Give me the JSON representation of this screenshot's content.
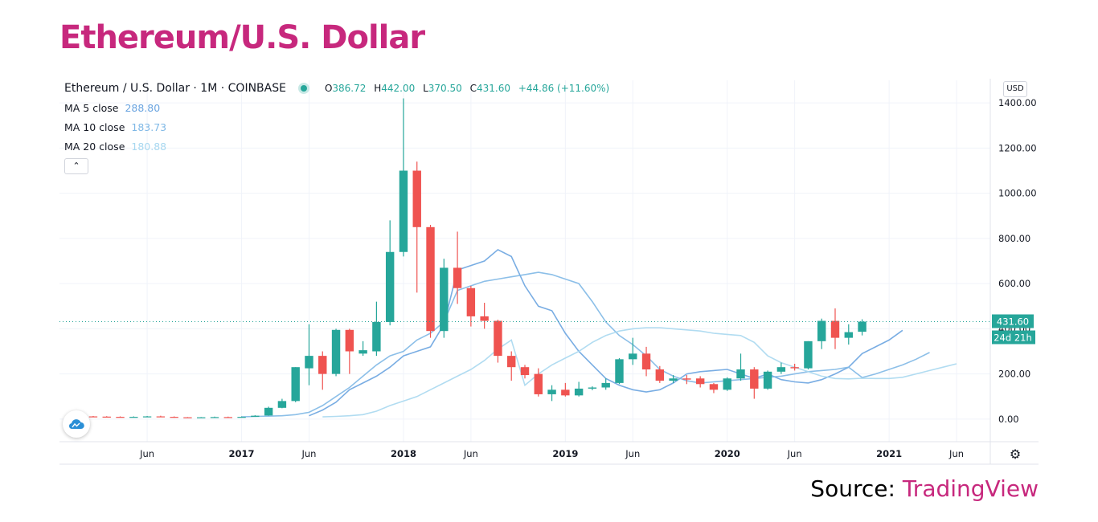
{
  "page_title": "Ethereum/U.S. Dollar",
  "colors": {
    "brand": "#c7287d",
    "up": "#26a69a",
    "down": "#ef5350",
    "ma5": "#6aa4e0",
    "ma10": "#7fb8e6",
    "ma20": "#a8d8f0",
    "grid": "#f0f3fa",
    "axis_text": "#131722"
  },
  "header": {
    "symbol": "Ethereum / U.S. Dollar · 1M · COINBASE",
    "o_label": "O",
    "o_value": "386.72",
    "h_label": "H",
    "h_value": "442.00",
    "l_label": "L",
    "l_value": "370.50",
    "c_label": "C",
    "c_value": "431.60",
    "change": "+44.86 (+11.60%)"
  },
  "indicators": [
    {
      "label": "MA 5 close",
      "value": "288.80"
    },
    {
      "label": "MA 10 close",
      "value": "183.73"
    },
    {
      "label": "MA 20 close",
      "value": "180.88"
    }
  ],
  "controls": {
    "collapse_icon": "chevron-up-icon",
    "collapse_glyph": "⌃",
    "currency": "USD",
    "settings_glyph": "⚙",
    "settings_icon": "gear-icon"
  },
  "price_tag": {
    "value": "431.60",
    "countdown": "24d 21h"
  },
  "source": {
    "prefix": "Source:",
    "brand": "TradingView"
  },
  "chart_data": {
    "type": "candlestick",
    "title": "Ethereum / U.S. Dollar · 1M · COINBASE",
    "ylim": [
      -100,
      1500
    ],
    "y_ticks": [
      {
        "value": 0,
        "label": "0.00"
      },
      {
        "value": 200,
        "label": "200.00"
      },
      {
        "value": 400,
        "label": "400.00"
      },
      {
        "value": 600,
        "label": "600.00"
      },
      {
        "value": 800,
        "label": "800.00"
      },
      {
        "value": 1000,
        "label": "1000.00"
      },
      {
        "value": 1200,
        "label": "1200.00"
      },
      {
        "value": 1400,
        "label": "1400.00"
      }
    ],
    "x_ticks": [
      {
        "i": 5,
        "label": "Jun",
        "bold": false
      },
      {
        "i": 12,
        "label": "2017",
        "bold": true
      },
      {
        "i": 17,
        "label": "Jun",
        "bold": false
      },
      {
        "i": 24,
        "label": "2018",
        "bold": true
      },
      {
        "i": 29,
        "label": "Jun",
        "bold": false
      },
      {
        "i": 36,
        "label": "2019",
        "bold": true
      },
      {
        "i": 41,
        "label": "Jun",
        "bold": false
      },
      {
        "i": 48,
        "label": "2020",
        "bold": true
      },
      {
        "i": 53,
        "label": "Jun",
        "bold": false
      },
      {
        "i": 60,
        "label": "2021",
        "bold": true
      },
      {
        "i": 65,
        "label": "Jun",
        "bold": false
      }
    ],
    "x_range": [
      -1.5,
      67.5
    ],
    "candles": [
      {
        "i": 1,
        "o": 12,
        "h": 14,
        "l": 10,
        "c": 11
      },
      {
        "i": 2,
        "o": 11,
        "h": 13,
        "l": 9,
        "c": 10
      },
      {
        "i": 3,
        "o": 10,
        "h": 12,
        "l": 8,
        "c": 9
      },
      {
        "i": 4,
        "o": 9,
        "h": 12,
        "l": 8,
        "c": 10
      },
      {
        "i": 5,
        "o": 10,
        "h": 14,
        "l": 9,
        "c": 12
      },
      {
        "i": 6,
        "o": 12,
        "h": 15,
        "l": 9,
        "c": 10
      },
      {
        "i": 7,
        "o": 10,
        "h": 12,
        "l": 6,
        "c": 7
      },
      {
        "i": 8,
        "o": 8,
        "h": 9,
        "l": 7,
        "c": 7
      },
      {
        "i": 9,
        "o": 7,
        "h": 9,
        "l": 6,
        "c": 8
      },
      {
        "i": 10,
        "o": 8,
        "h": 11,
        "l": 7,
        "c": 9
      },
      {
        "i": 11,
        "o": 9,
        "h": 11,
        "l": 7,
        "c": 8
      },
      {
        "i": 12,
        "o": 8,
        "h": 12,
        "l": 8,
        "c": 10
      },
      {
        "i": 13,
        "o": 10,
        "h": 17,
        "l": 10,
        "c": 15
      },
      {
        "i": 14,
        "o": 16,
        "h": 55,
        "l": 15,
        "c": 50
      },
      {
        "i": 15,
        "o": 50,
        "h": 90,
        "l": 48,
        "c": 80
      },
      {
        "i": 16,
        "o": 80,
        "h": 230,
        "l": 75,
        "c": 230
      },
      {
        "i": 17,
        "o": 225,
        "h": 420,
        "l": 150,
        "c": 280
      },
      {
        "i": 18,
        "o": 280,
        "h": 300,
        "l": 130,
        "c": 200
      },
      {
        "i": 19,
        "o": 200,
        "h": 400,
        "l": 190,
        "c": 395
      },
      {
        "i": 20,
        "o": 395,
        "h": 400,
        "l": 200,
        "c": 300
      },
      {
        "i": 21,
        "o": 290,
        "h": 345,
        "l": 280,
        "c": 305
      },
      {
        "i": 22,
        "o": 300,
        "h": 520,
        "l": 280,
        "c": 430
      },
      {
        "i": 23,
        "o": 430,
        "h": 880,
        "l": 415,
        "c": 740
      },
      {
        "i": 24,
        "o": 740,
        "h": 1420,
        "l": 720,
        "c": 1100
      },
      {
        "i": 25,
        "o": 1100,
        "h": 1140,
        "l": 560,
        "c": 850
      },
      {
        "i": 26,
        "o": 850,
        "h": 860,
        "l": 360,
        "c": 390
      },
      {
        "i": 27,
        "o": 390,
        "h": 710,
        "l": 360,
        "c": 670
      },
      {
        "i": 28,
        "o": 670,
        "h": 830,
        "l": 510,
        "c": 580
      },
      {
        "i": 29,
        "o": 580,
        "h": 590,
        "l": 410,
        "c": 455
      },
      {
        "i": 30,
        "o": 455,
        "h": 515,
        "l": 400,
        "c": 435
      },
      {
        "i": 31,
        "o": 435,
        "h": 440,
        "l": 250,
        "c": 280
      },
      {
        "i": 32,
        "o": 280,
        "h": 300,
        "l": 170,
        "c": 230
      },
      {
        "i": 33,
        "o": 230,
        "h": 240,
        "l": 180,
        "c": 195
      },
      {
        "i": 34,
        "o": 200,
        "h": 225,
        "l": 100,
        "c": 110
      },
      {
        "i": 35,
        "o": 110,
        "h": 150,
        "l": 80,
        "c": 130
      },
      {
        "i": 36,
        "o": 130,
        "h": 160,
        "l": 100,
        "c": 105
      },
      {
        "i": 37,
        "o": 105,
        "h": 165,
        "l": 100,
        "c": 135
      },
      {
        "i": 38,
        "o": 135,
        "h": 145,
        "l": 128,
        "c": 140
      },
      {
        "i": 39,
        "o": 140,
        "h": 180,
        "l": 130,
        "c": 160
      },
      {
        "i": 40,
        "o": 160,
        "h": 270,
        "l": 155,
        "c": 265
      },
      {
        "i": 41,
        "o": 265,
        "h": 360,
        "l": 240,
        "c": 290
      },
      {
        "i": 42,
        "o": 290,
        "h": 320,
        "l": 190,
        "c": 220
      },
      {
        "i": 43,
        "o": 220,
        "h": 235,
        "l": 160,
        "c": 170
      },
      {
        "i": 44,
        "o": 170,
        "h": 195,
        "l": 160,
        "c": 180
      },
      {
        "i": 45,
        "o": 180,
        "h": 195,
        "l": 155,
        "c": 175
      },
      {
        "i": 46,
        "o": 180,
        "h": 190,
        "l": 140,
        "c": 155
      },
      {
        "i": 47,
        "o": 155,
        "h": 160,
        "l": 115,
        "c": 130
      },
      {
        "i": 48,
        "o": 130,
        "h": 185,
        "l": 125,
        "c": 180
      },
      {
        "i": 49,
        "o": 180,
        "h": 290,
        "l": 170,
        "c": 220
      },
      {
        "i": 50,
        "o": 220,
        "h": 230,
        "l": 90,
        "c": 135
      },
      {
        "i": 51,
        "o": 135,
        "h": 215,
        "l": 130,
        "c": 210
      },
      {
        "i": 52,
        "o": 210,
        "h": 250,
        "l": 200,
        "c": 230
      },
      {
        "i": 53,
        "o": 230,
        "h": 245,
        "l": 215,
        "c": 225
      },
      {
        "i": 54,
        "o": 225,
        "h": 345,
        "l": 220,
        "c": 345
      },
      {
        "i": 55,
        "o": 345,
        "h": 445,
        "l": 310,
        "c": 435
      },
      {
        "i": 56,
        "o": 435,
        "h": 490,
        "l": 310,
        "c": 360
      },
      {
        "i": 57,
        "o": 360,
        "h": 420,
        "l": 330,
        "c": 385
      },
      {
        "i": 58,
        "o": 386.72,
        "h": 442,
        "l": 370.5,
        "c": 431.6
      }
    ],
    "series": [
      {
        "name": "MA 5 close",
        "points": [
          [
            17,
            15
          ],
          [
            18,
            40
          ],
          [
            19,
            75
          ],
          [
            20,
            130
          ],
          [
            21,
            160
          ],
          [
            22,
            190
          ],
          [
            23,
            230
          ],
          [
            24,
            280
          ],
          [
            25,
            300
          ],
          [
            26,
            320
          ],
          [
            27,
            420
          ],
          [
            28,
            660
          ],
          [
            29,
            680
          ],
          [
            30,
            700
          ],
          [
            31,
            750
          ],
          [
            32,
            720
          ],
          [
            33,
            590
          ],
          [
            34,
            500
          ],
          [
            35,
            480
          ],
          [
            36,
            380
          ],
          [
            37,
            300
          ],
          [
            38,
            240
          ],
          [
            39,
            180
          ],
          [
            40,
            150
          ],
          [
            41,
            130
          ],
          [
            42,
            120
          ],
          [
            43,
            130
          ],
          [
            44,
            160
          ],
          [
            45,
            200
          ],
          [
            46,
            210
          ],
          [
            47,
            215
          ],
          [
            48,
            220
          ],
          [
            49,
            200
          ],
          [
            50,
            180
          ],
          [
            51,
            200
          ],
          [
            52,
            175
          ],
          [
            53,
            165
          ],
          [
            54,
            160
          ],
          [
            55,
            175
          ],
          [
            56,
            200
          ],
          [
            57,
            230
          ],
          [
            58,
            290
          ],
          [
            59,
            320
          ],
          [
            60,
            350
          ],
          [
            61,
            393
          ]
        ]
      },
      {
        "name": "MA 10 close",
        "points": [
          [
            12,
            10
          ],
          [
            13,
            12
          ],
          [
            14,
            13
          ],
          [
            15,
            15
          ],
          [
            16,
            20
          ],
          [
            17,
            30
          ],
          [
            18,
            60
          ],
          [
            19,
            100
          ],
          [
            20,
            140
          ],
          [
            21,
            190
          ],
          [
            22,
            240
          ],
          [
            23,
            280
          ],
          [
            24,
            300
          ],
          [
            25,
            350
          ],
          [
            26,
            380
          ],
          [
            27,
            430
          ],
          [
            28,
            570
          ],
          [
            29,
            590
          ],
          [
            30,
            610
          ],
          [
            31,
            620
          ],
          [
            32,
            630
          ],
          [
            33,
            640
          ],
          [
            34,
            650
          ],
          [
            35,
            640
          ],
          [
            36,
            620
          ],
          [
            37,
            600
          ],
          [
            38,
            520
          ],
          [
            39,
            430
          ],
          [
            40,
            370
          ],
          [
            41,
            330
          ],
          [
            42,
            280
          ],
          [
            43,
            220
          ],
          [
            44,
            190
          ],
          [
            45,
            170
          ],
          [
            46,
            160
          ],
          [
            47,
            165
          ],
          [
            48,
            170
          ],
          [
            49,
            175
          ],
          [
            50,
            180
          ],
          [
            51,
            185
          ],
          [
            52,
            190
          ],
          [
            53,
            200
          ],
          [
            54,
            210
          ],
          [
            55,
            215
          ],
          [
            56,
            220
          ],
          [
            57,
            230
          ],
          [
            58,
            184
          ],
          [
            59,
            200
          ],
          [
            60,
            220
          ],
          [
            61,
            240
          ],
          [
            62,
            265
          ],
          [
            63,
            295
          ]
        ]
      },
      {
        "name": "MA 20 close",
        "points": [
          [
            18,
            10
          ],
          [
            19,
            12
          ],
          [
            20,
            15
          ],
          [
            21,
            20
          ],
          [
            22,
            35
          ],
          [
            23,
            60
          ],
          [
            24,
            80
          ],
          [
            25,
            100
          ],
          [
            26,
            130
          ],
          [
            27,
            160
          ],
          [
            28,
            190
          ],
          [
            29,
            220
          ],
          [
            30,
            260
          ],
          [
            31,
            310
          ],
          [
            32,
            350
          ],
          [
            33,
            150
          ],
          [
            34,
            200
          ],
          [
            35,
            240
          ],
          [
            36,
            270
          ],
          [
            37,
            300
          ],
          [
            38,
            340
          ],
          [
            39,
            370
          ],
          [
            40,
            390
          ],
          [
            41,
            400
          ],
          [
            42,
            405
          ],
          [
            43,
            405
          ],
          [
            44,
            400
          ],
          [
            45,
            395
          ],
          [
            46,
            390
          ],
          [
            47,
            380
          ],
          [
            48,
            375
          ],
          [
            49,
            370
          ],
          [
            50,
            340
          ],
          [
            51,
            280
          ],
          [
            52,
            250
          ],
          [
            53,
            230
          ],
          [
            54,
            210
          ],
          [
            55,
            190
          ],
          [
            56,
            180
          ],
          [
            57,
            178
          ],
          [
            58,
            181
          ],
          [
            59,
            180
          ],
          [
            60,
            180
          ],
          [
            61,
            185
          ],
          [
            62,
            200
          ],
          [
            63,
            215
          ],
          [
            64,
            230
          ],
          [
            65,
            245
          ]
        ]
      }
    ]
  }
}
